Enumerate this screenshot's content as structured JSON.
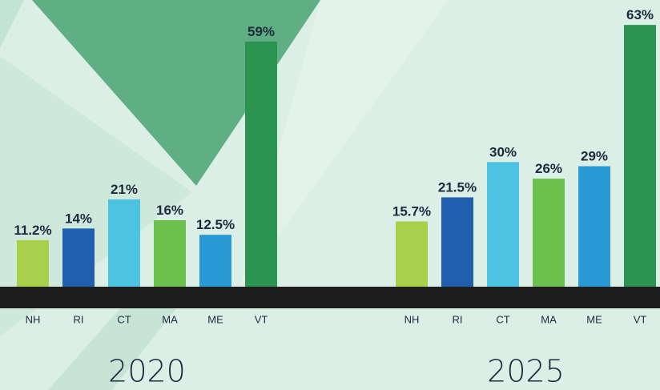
{
  "chart_data": [
    {
      "type": "bar",
      "title": "2020",
      "categories": [
        "NH",
        "RI",
        "CT",
        "MA",
        "ME",
        "VT"
      ],
      "values": [
        11.2,
        14,
        21,
        16,
        12.5,
        59
      ],
      "value_labels": [
        "11.2%",
        "14%",
        "21%",
        "16%",
        "12.5%",
        "59%"
      ],
      "colors": [
        "#a9d04a",
        "#1f5fad",
        "#4cc3e0",
        "#6cc04e",
        "#2a9ad6",
        "#2b9450"
      ],
      "ylim": [
        0,
        69
      ]
    },
    {
      "type": "bar",
      "title": "2025",
      "categories": [
        "NH",
        "RI",
        "CT",
        "MA",
        "ME",
        "VT"
      ],
      "values": [
        15.7,
        21.5,
        30,
        26,
        29,
        63
      ],
      "value_labels": [
        "15.7%",
        "21.5%",
        "30%",
        "26%",
        "29%",
        "63%"
      ],
      "colors": [
        "#a9d04a",
        "#1f5fad",
        "#4cc3e0",
        "#6cc04e",
        "#2a9ad6",
        "#2b9450"
      ],
      "ylim": [
        0,
        69
      ]
    }
  ]
}
